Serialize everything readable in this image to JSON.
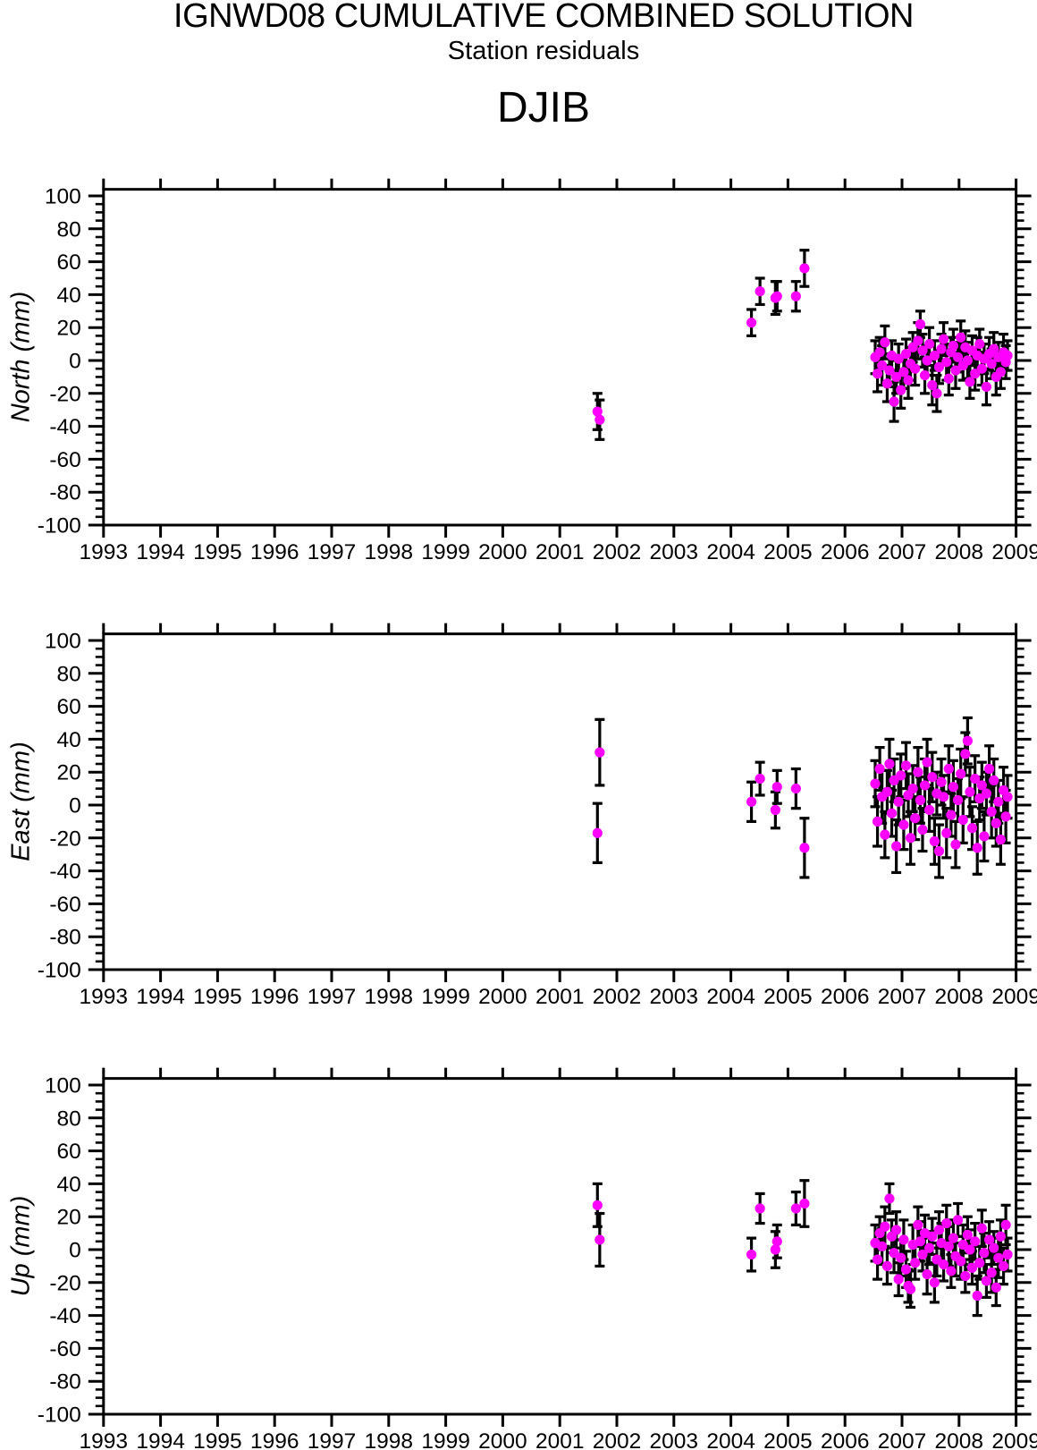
{
  "header": {
    "title": "IGNWD08 CUMULATIVE COMBINED SOLUTION",
    "subtitle": "Station residuals",
    "station": "DJIB"
  },
  "colors": {
    "point": "#ff00ff",
    "axis": "#000000",
    "background": "#ffffff"
  },
  "chart_data": [
    {
      "type": "scatter",
      "name": "north-residuals",
      "ylabel": "North (mm)",
      "xlabel": "",
      "xlim": [
        1993,
        2009
      ],
      "ylim": [
        -100,
        100
      ],
      "xticks": [
        1993,
        1994,
        1995,
        1996,
        1997,
        1998,
        1999,
        2000,
        2001,
        2002,
        2003,
        2004,
        2005,
        2006,
        2007,
        2008,
        2009
      ],
      "yticks": [
        -100,
        -80,
        -60,
        -40,
        -20,
        0,
        20,
        40,
        60,
        80,
        100
      ],
      "y_minor_interval": 5,
      "marker": "filled-circle",
      "error_bars": true,
      "points": [
        [
          2001.66,
          -31,
          11
        ],
        [
          2001.7,
          -36,
          12
        ],
        [
          2004.36,
          23,
          8
        ],
        [
          2004.51,
          42,
          8
        ],
        [
          2004.78,
          38,
          10
        ],
        [
          2004.81,
          39,
          9
        ],
        [
          2005.14,
          39,
          9
        ],
        [
          2005.29,
          56,
          11
        ],
        [
          2006.53,
          2,
          10
        ],
        [
          2006.57,
          -8,
          11
        ],
        [
          2006.61,
          5,
          9
        ],
        [
          2006.65,
          -3,
          12
        ],
        [
          2006.7,
          11,
          10
        ],
        [
          2006.74,
          -14,
          11
        ],
        [
          2006.78,
          -6,
          10
        ],
        [
          2006.82,
          3,
          9
        ],
        [
          2006.86,
          -25,
          12
        ],
        [
          2006.9,
          -10,
          10
        ],
        [
          2006.94,
          1,
          9
        ],
        [
          2006.98,
          -18,
          11
        ],
        [
          2007.03,
          -7,
          10
        ],
        [
          2007.07,
          4,
          9
        ],
        [
          2007.11,
          -12,
          11
        ],
        [
          2007.15,
          -2,
          10
        ],
        [
          2007.19,
          8,
          9
        ],
        [
          2007.23,
          -5,
          10
        ],
        [
          2007.28,
          12,
          11
        ],
        [
          2007.32,
          22,
          8
        ],
        [
          2007.36,
          6,
          10
        ],
        [
          2007.4,
          -9,
          11
        ],
        [
          2007.44,
          0,
          9
        ],
        [
          2007.48,
          10,
          10
        ],
        [
          2007.53,
          -15,
          12
        ],
        [
          2007.57,
          3,
          9
        ],
        [
          2007.61,
          -20,
          11
        ],
        [
          2007.65,
          -4,
          10
        ],
        [
          2007.69,
          7,
          9
        ],
        [
          2007.73,
          13,
          10
        ],
        [
          2007.78,
          -1,
          11
        ],
        [
          2007.82,
          -11,
          10
        ],
        [
          2007.86,
          5,
          9
        ],
        [
          2007.9,
          9,
          10
        ],
        [
          2007.94,
          -6,
          11
        ],
        [
          2007.98,
          2,
          9
        ],
        [
          2008.03,
          14,
          10
        ],
        [
          2008.07,
          -3,
          9
        ],
        [
          2008.11,
          8,
          10
        ],
        [
          2008.15,
          0,
          11
        ],
        [
          2008.19,
          -13,
          10
        ],
        [
          2008.23,
          6,
          9
        ],
        [
          2008.28,
          -8,
          10
        ],
        [
          2008.32,
          3,
          11
        ],
        [
          2008.36,
          10,
          9
        ],
        [
          2008.4,
          -5,
          10
        ],
        [
          2008.44,
          1,
          9
        ],
        [
          2008.48,
          -16,
          11
        ],
        [
          2008.53,
          4,
          10
        ],
        [
          2008.57,
          -2,
          9
        ],
        [
          2008.61,
          7,
          10
        ],
        [
          2008.65,
          -10,
          11
        ],
        [
          2008.69,
          2,
          9
        ],
        [
          2008.73,
          -7,
          10
        ],
        [
          2008.78,
          5,
          11
        ],
        [
          2008.82,
          -1,
          10
        ],
        [
          2008.85,
          3,
          9
        ]
      ]
    },
    {
      "type": "scatter",
      "name": "east-residuals",
      "ylabel": "East (mm)",
      "xlabel": "",
      "xlim": [
        1993,
        2009
      ],
      "ylim": [
        -100,
        100
      ],
      "xticks": [
        1993,
        1994,
        1995,
        1996,
        1997,
        1998,
        1999,
        2000,
        2001,
        2002,
        2003,
        2004,
        2005,
        2006,
        2007,
        2008,
        2009
      ],
      "yticks": [
        -100,
        -80,
        -60,
        -40,
        -20,
        0,
        20,
        40,
        60,
        80,
        100
      ],
      "y_minor_interval": 5,
      "marker": "filled-circle",
      "error_bars": true,
      "points": [
        [
          2001.66,
          -17,
          18
        ],
        [
          2001.7,
          32,
          20
        ],
        [
          2004.36,
          2,
          12
        ],
        [
          2004.51,
          16,
          10
        ],
        [
          2004.78,
          -3,
          11
        ],
        [
          2004.81,
          11,
          10
        ],
        [
          2005.14,
          10,
          12
        ],
        [
          2005.29,
          -26,
          18
        ],
        [
          2006.53,
          13,
          14
        ],
        [
          2006.57,
          -10,
          15
        ],
        [
          2006.61,
          22,
          13
        ],
        [
          2006.65,
          5,
          16
        ],
        [
          2006.7,
          -18,
          14
        ],
        [
          2006.74,
          8,
          13
        ],
        [
          2006.78,
          25,
          15
        ],
        [
          2006.82,
          -5,
          14
        ],
        [
          2006.86,
          15,
          13
        ],
        [
          2006.9,
          -25,
          16
        ],
        [
          2006.94,
          2,
          14
        ],
        [
          2006.98,
          18,
          13
        ],
        [
          2007.03,
          -12,
          15
        ],
        [
          2007.07,
          24,
          14
        ],
        [
          2007.11,
          6,
          13
        ],
        [
          2007.15,
          -20,
          16
        ],
        [
          2007.19,
          10,
          14
        ],
        [
          2007.23,
          -8,
          13
        ],
        [
          2007.28,
          20,
          15
        ],
        [
          2007.32,
          3,
          14
        ],
        [
          2007.36,
          -15,
          13
        ],
        [
          2007.4,
          12,
          16
        ],
        [
          2007.44,
          26,
          14
        ],
        [
          2007.48,
          -3,
          13
        ],
        [
          2007.53,
          17,
          15
        ],
        [
          2007.57,
          -22,
          14
        ],
        [
          2007.61,
          7,
          13
        ],
        [
          2007.65,
          -28,
          16
        ],
        [
          2007.69,
          14,
          14
        ],
        [
          2007.73,
          5,
          13
        ],
        [
          2007.78,
          -17,
          15
        ],
        [
          2007.82,
          22,
          14
        ],
        [
          2007.86,
          -6,
          13
        ],
        [
          2007.9,
          11,
          16
        ],
        [
          2007.94,
          -24,
          14
        ],
        [
          2007.98,
          3,
          13
        ],
        [
          2008.03,
          19,
          15
        ],
        [
          2008.07,
          -9,
          14
        ],
        [
          2008.11,
          31,
          13
        ],
        [
          2008.15,
          39,
          14
        ],
        [
          2008.19,
          8,
          15
        ],
        [
          2008.23,
          -14,
          13
        ],
        [
          2008.28,
          16,
          14
        ],
        [
          2008.32,
          -26,
          16
        ],
        [
          2008.36,
          4,
          13
        ],
        [
          2008.4,
          12,
          14
        ],
        [
          2008.44,
          -19,
          15
        ],
        [
          2008.48,
          7,
          13
        ],
        [
          2008.53,
          22,
          14
        ],
        [
          2008.57,
          -4,
          16
        ],
        [
          2008.61,
          15,
          13
        ],
        [
          2008.65,
          -11,
          14
        ],
        [
          2008.69,
          2,
          13
        ],
        [
          2008.73,
          -21,
          15
        ],
        [
          2008.78,
          9,
          14
        ],
        [
          2008.82,
          -7,
          16
        ],
        [
          2008.85,
          5,
          13
        ]
      ]
    },
    {
      "type": "scatter",
      "name": "up-residuals",
      "ylabel": "Up (mm)",
      "xlabel": "",
      "xlim": [
        1993,
        2009
      ],
      "ylim": [
        -100,
        100
      ],
      "xticks": [
        1993,
        1994,
        1995,
        1996,
        1997,
        1998,
        1999,
        2000,
        2001,
        2002,
        2003,
        2004,
        2005,
        2006,
        2007,
        2008,
        2009
      ],
      "yticks": [
        -100,
        -80,
        -60,
        -40,
        -20,
        0,
        20,
        40,
        60,
        80,
        100
      ],
      "y_minor_interval": 5,
      "marker": "filled-circle",
      "error_bars": true,
      "points": [
        [
          2001.66,
          27,
          13
        ],
        [
          2001.7,
          6,
          16
        ],
        [
          2004.36,
          -3,
          10
        ],
        [
          2004.51,
          25,
          9
        ],
        [
          2004.78,
          0,
          11
        ],
        [
          2004.81,
          5,
          10
        ],
        [
          2005.14,
          25,
          10
        ],
        [
          2005.29,
          28,
          14
        ],
        [
          2006.53,
          4,
          11
        ],
        [
          2006.57,
          -6,
          12
        ],
        [
          2006.61,
          10,
          10
        ],
        [
          2006.65,
          2,
          11
        ],
        [
          2006.7,
          14,
          12
        ],
        [
          2006.74,
          -10,
          11
        ],
        [
          2006.78,
          31,
          9
        ],
        [
          2006.82,
          8,
          10
        ],
        [
          2006.86,
          -2,
          12
        ],
        [
          2006.9,
          12,
          11
        ],
        [
          2006.94,
          -18,
          10
        ],
        [
          2006.98,
          -5,
          11
        ],
        [
          2007.03,
          6,
          12
        ],
        [
          2007.07,
          -12,
          11
        ],
        [
          2007.11,
          -22,
          10
        ],
        [
          2007.15,
          -24,
          11
        ],
        [
          2007.19,
          3,
          12
        ],
        [
          2007.23,
          -8,
          10
        ],
        [
          2007.28,
          15,
          11
        ],
        [
          2007.32,
          5,
          12
        ],
        [
          2007.36,
          -3,
          10
        ],
        [
          2007.4,
          10,
          11
        ],
        [
          2007.44,
          -15,
          12
        ],
        [
          2007.48,
          1,
          10
        ],
        [
          2007.53,
          8,
          11
        ],
        [
          2007.57,
          -20,
          12
        ],
        [
          2007.61,
          -6,
          10
        ],
        [
          2007.65,
          12,
          11
        ],
        [
          2007.69,
          4,
          12
        ],
        [
          2007.73,
          -9,
          10
        ],
        [
          2007.78,
          16,
          11
        ],
        [
          2007.82,
          2,
          12
        ],
        [
          2007.86,
          -13,
          10
        ],
        [
          2007.9,
          7,
          11
        ],
        [
          2007.94,
          -4,
          12
        ],
        [
          2007.98,
          18,
          10
        ],
        [
          2008.03,
          -7,
          11
        ],
        [
          2008.07,
          3,
          12
        ],
        [
          2008.11,
          -16,
          10
        ],
        [
          2008.15,
          9,
          11
        ],
        [
          2008.19,
          0,
          12
        ],
        [
          2008.23,
          -11,
          10
        ],
        [
          2008.28,
          5,
          11
        ],
        [
          2008.32,
          -28,
          12
        ],
        [
          2008.36,
          -8,
          10
        ],
        [
          2008.4,
          13,
          11
        ],
        [
          2008.44,
          -2,
          12
        ],
        [
          2008.48,
          -19,
          10
        ],
        [
          2008.53,
          6,
          11
        ],
        [
          2008.57,
          -14,
          12
        ],
        [
          2008.61,
          1,
          10
        ],
        [
          2008.65,
          -23,
          11
        ],
        [
          2008.69,
          -5,
          12
        ],
        [
          2008.73,
          8,
          10
        ],
        [
          2008.78,
          -10,
          11
        ],
        [
          2008.82,
          15,
          12
        ],
        [
          2008.85,
          -3,
          10
        ]
      ]
    }
  ]
}
